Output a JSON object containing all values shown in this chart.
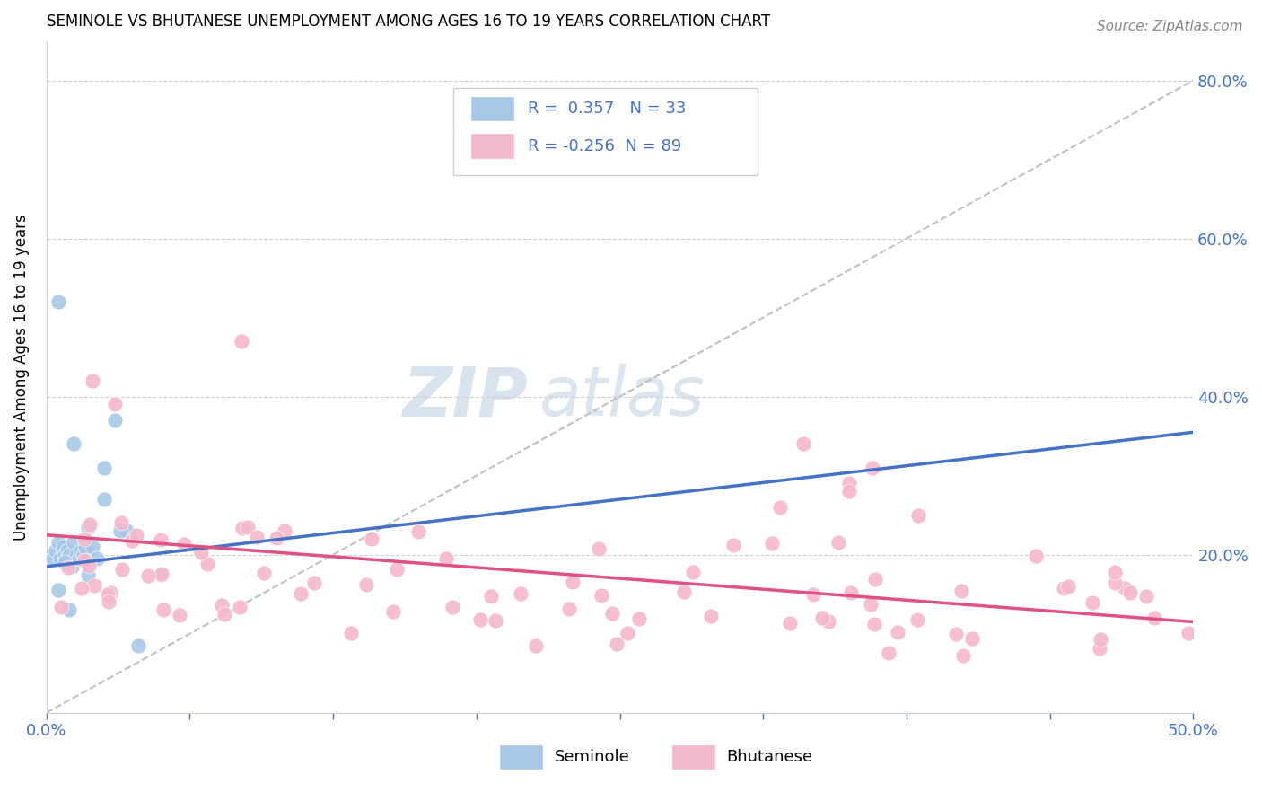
{
  "title": "SEMINOLE VS BHUTANESE UNEMPLOYMENT AMONG AGES 16 TO 19 YEARS CORRELATION CHART",
  "source": "Source: ZipAtlas.com",
  "ylabel": "Unemployment Among Ages 16 to 19 years",
  "xlim": [
    0.0,
    0.5
  ],
  "ylim": [
    0.0,
    0.85
  ],
  "yticks_right": [
    0.2,
    0.4,
    0.6,
    0.8
  ],
  "ytick_right_labels": [
    "20.0%",
    "40.0%",
    "60.0%",
    "80.0%"
  ],
  "seminole_color": "#a8c8e8",
  "bhutanese_color": "#f4b8cc",
  "seminole_line_color": "#4472c4",
  "bhutanese_line_color": "#e05080",
  "trend_line_color": "#c0c0c0",
  "R_seminole": 0.357,
  "N_seminole": 33,
  "R_bhutanese": -0.256,
  "N_bhutanese": 89,
  "legend_text_color": "#4472c4",
  "seminole_line_x0": 0.0,
  "seminole_line_y0": 0.185,
  "seminole_line_x1": 0.5,
  "seminole_line_y1": 0.355,
  "bhutanese_line_x0": 0.0,
  "bhutanese_line_y0": 0.225,
  "bhutanese_line_x1": 0.5,
  "bhutanese_line_y1": 0.115,
  "gray_line_x0": 0.0,
  "gray_line_y0": 0.0,
  "gray_line_x1": 0.5,
  "gray_line_y1": 0.8
}
